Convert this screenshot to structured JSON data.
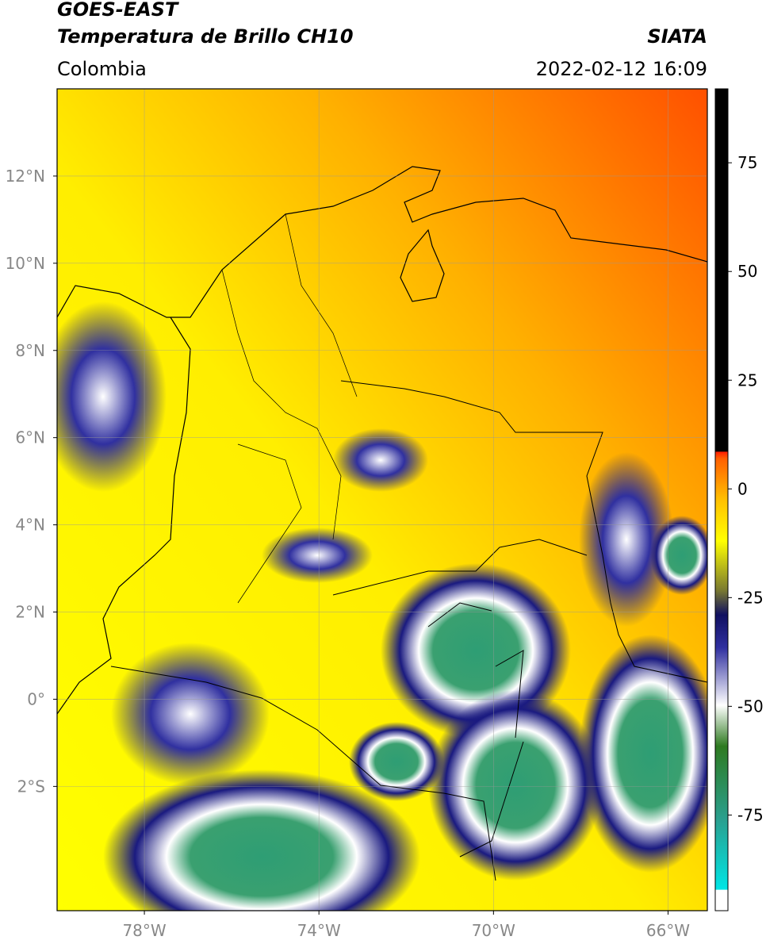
{
  "header": {
    "title": "GOES-EAST",
    "subtitle": "Temperatura de Brillo CH10",
    "source": "SIATA",
    "region": "Colombia",
    "timestamp": "2022-02-12 16:09"
  },
  "map": {
    "lon_range": [
      -80,
      -65.1
    ],
    "lat_range": [
      -4.85,
      14
    ],
    "lat_ticks": [
      {
        "value": 12,
        "label": "12°N"
      },
      {
        "value": 10,
        "label": "10°N"
      },
      {
        "value": 8,
        "label": "8°N"
      },
      {
        "value": 6,
        "label": "6°N"
      },
      {
        "value": 4,
        "label": "4°N"
      },
      {
        "value": 2,
        "label": "2°N"
      },
      {
        "value": 0,
        "label": "0°"
      },
      {
        "value": -2,
        "label": "2°S"
      }
    ],
    "lon_ticks": [
      {
        "value": -78,
        "label": "78°W"
      },
      {
        "value": -74,
        "label": "74°W"
      },
      {
        "value": -70,
        "label": "70°W"
      },
      {
        "value": -66,
        "label": "66°W"
      }
    ],
    "grid": true
  },
  "colorbar": {
    "lim": [
      -97,
      92
    ],
    "ticks": [
      75,
      50,
      25,
      0,
      -25,
      -50,
      -75
    ]
  }
}
